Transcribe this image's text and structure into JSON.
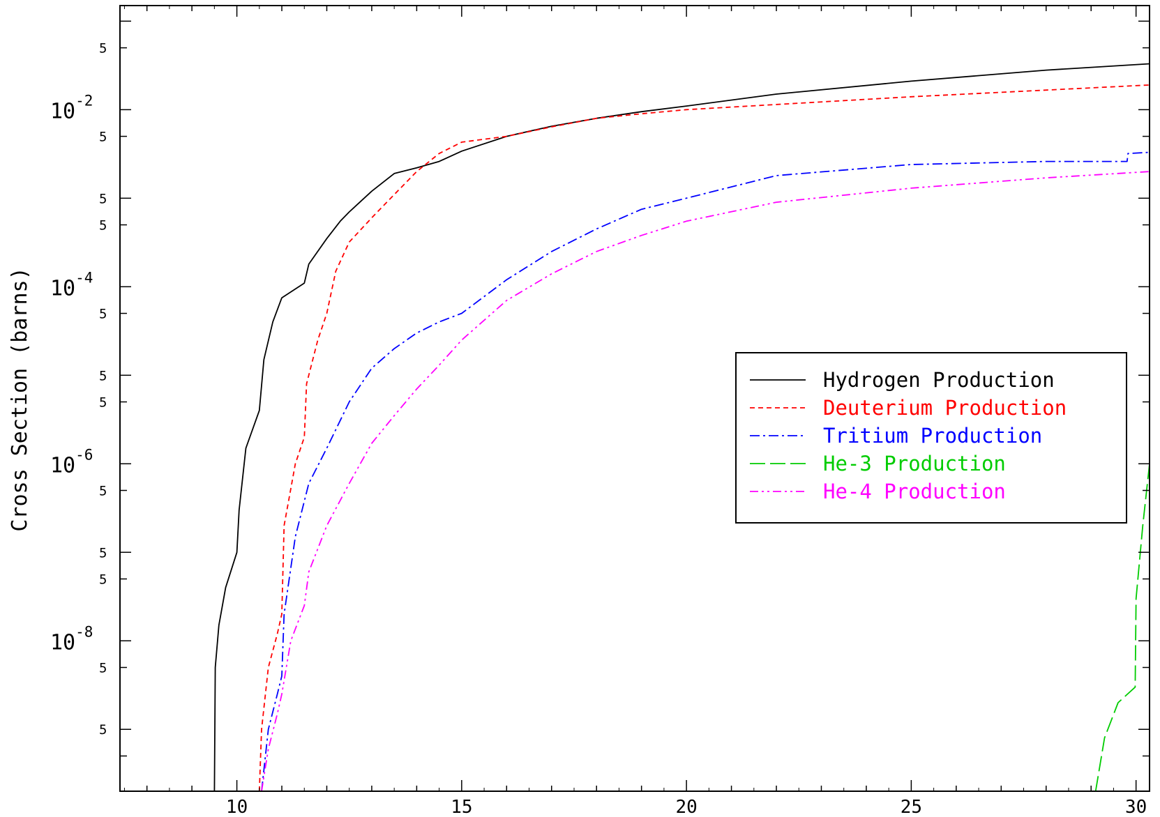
{
  "chart_data": {
    "type": "line",
    "title": "",
    "xlabel": "",
    "ylabel": "Cross Section (barns)",
    "y_scale": "log",
    "xlim": [
      7.4,
      30.3
    ],
    "ylim": [
      2e-10,
      0.15
    ],
    "grid": false,
    "legend_position": "right-middle",
    "x_ticks": [
      "10",
      "15",
      "20",
      "25",
      "30"
    ],
    "y_decade_labels": [
      {
        "base": "10",
        "exp": "-2",
        "value": 0.01
      },
      {
        "base": "10",
        "exp": "-4",
        "value": 0.0001
      },
      {
        "base": "10",
        "exp": "-6",
        "value": 1e-06
      },
      {
        "base": "10",
        "exp": "-8",
        "value": 1e-08
      }
    ],
    "y_five_labels": [
      "5",
      "5",
      "5",
      "5",
      "5",
      "5",
      "5",
      "5",
      "5",
      "5",
      "5",
      "5"
    ],
    "series": [
      {
        "name": "Hydrogen Production",
        "color": "#000000",
        "dash": "solid",
        "x": [
          9.5,
          9.52,
          9.6,
          9.75,
          10.0,
          10.05,
          10.2,
          10.5,
          10.6,
          10.8,
          11.0,
          11.5,
          11.6,
          12.0,
          12.3,
          12.5,
          13.0,
          13.5,
          14.0,
          14.5,
          15.0,
          16.0,
          17.0,
          18.0,
          19.0,
          20.0,
          22.0,
          25.0,
          28.0,
          30.3
        ],
        "y": [
          2e-10,
          5e-09,
          1.5e-08,
          4e-08,
          1e-07,
          3e-07,
          1.5e-06,
          4e-06,
          1.5e-05,
          4e-05,
          7.5e-05,
          0.00011,
          0.00018,
          0.00035,
          0.00055,
          0.0007,
          0.0012,
          0.0019,
          0.0022,
          0.0026,
          0.0034,
          0.005,
          0.0065,
          0.008,
          0.0095,
          0.011,
          0.015,
          0.021,
          0.028,
          0.033
        ]
      },
      {
        "name": "Deuterium Production",
        "color": "#ff0000",
        "dash": "dashed",
        "x": [
          10.5,
          10.55,
          10.7,
          10.9,
          11.0,
          11.05,
          11.3,
          11.5,
          11.55,
          11.8,
          12.0,
          12.2,
          12.5,
          13.0,
          13.5,
          14.0,
          14.5,
          15.0,
          16.0,
          17.0,
          18.0,
          19.0,
          20.0,
          25.0,
          30.3
        ],
        "y": [
          2e-10,
          1e-09,
          5e-09,
          1.2e-08,
          2e-08,
          2e-07,
          1e-06,
          2e-06,
          8e-06,
          2.5e-05,
          5e-05,
          0.00015,
          0.00032,
          0.0006,
          0.0011,
          0.002,
          0.0032,
          0.0043,
          0.005,
          0.0064,
          0.008,
          0.009,
          0.01,
          0.014,
          0.019
        ]
      },
      {
        "name": "Tritium Production",
        "color": "#0000ff",
        "dash": "dashdot",
        "x": [
          10.55,
          10.7,
          10.9,
          11.0,
          11.05,
          11.3,
          11.6,
          12.0,
          12.5,
          13.0,
          13.5,
          14.0,
          14.5,
          15.0,
          16.0,
          17.0,
          18.0,
          19.0,
          20.0,
          22.0,
          25.0,
          28.0,
          29.8,
          29.82,
          30.3
        ],
        "y": [
          2e-10,
          1e-09,
          2.5e-09,
          4e-09,
          2e-08,
          1.5e-07,
          6e-07,
          1.5e-06,
          5e-06,
          1.2e-05,
          2e-05,
          3e-05,
          4e-05,
          5e-05,
          0.00012,
          0.00025,
          0.00045,
          0.00075,
          0.001,
          0.0018,
          0.0024,
          0.0026,
          0.0026,
          0.0032,
          0.0033
        ]
      },
      {
        "name": "He-3 Production",
        "color": "#00cc00",
        "dash": "longdash",
        "x": [
          29.1,
          29.3,
          29.6,
          29.98,
          30.0,
          30.15,
          30.3
        ],
        "y": [
          2e-10,
          8e-10,
          2e-09,
          3e-09,
          3e-08,
          2e-07,
          1e-06
        ]
      },
      {
        "name": "He-4 Production",
        "color": "#ff00ff",
        "dash": "dashdotdot",
        "x": [
          10.55,
          10.7,
          10.9,
          11.0,
          11.2,
          11.5,
          11.6,
          12.0,
          12.5,
          13.0,
          13.5,
          14.0,
          14.5,
          15.0,
          16.0,
          17.0,
          18.0,
          19.0,
          20.0,
          22.0,
          25.0,
          28.0,
          30.3
        ],
        "y": [
          2e-10,
          6e-10,
          1.5e-09,
          2.5e-09,
          1e-08,
          2.5e-08,
          6e-08,
          2e-07,
          6e-07,
          1.7e-06,
          3.5e-06,
          7e-06,
          1.3e-05,
          2.5e-05,
          7e-05,
          0.00014,
          0.00025,
          0.00038,
          0.00055,
          0.0009,
          0.0013,
          0.0017,
          0.002
        ]
      }
    ]
  }
}
